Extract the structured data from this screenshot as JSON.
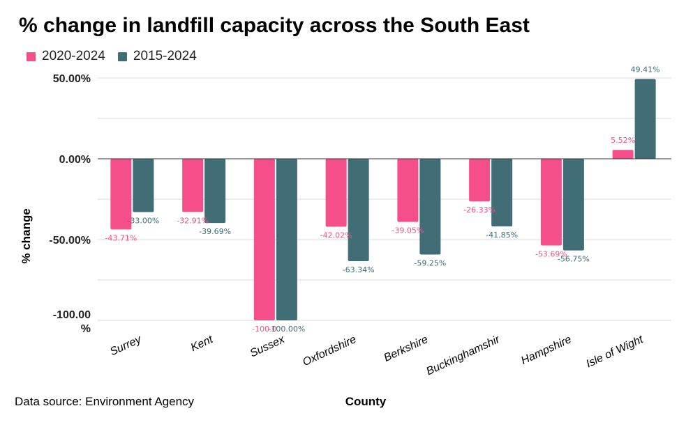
{
  "footer": {
    "source": "Data source: Environment Agency"
  },
  "colors": {
    "series1": "#f64e8b",
    "series2": "#416d77",
    "grid": "#d9d9d9",
    "baseline": "#333333"
  },
  "chart_data": {
    "type": "bar",
    "title": "% change in landfill capacity across the South East",
    "xlabel": "County",
    "ylabel": "% change",
    "ylim": [
      -100,
      50
    ],
    "yticks": [
      50,
      0,
      -50,
      -100
    ],
    "ytick_labels": [
      "50.00%",
      "0.00%",
      "-50.00%",
      "-100.00 %"
    ],
    "grid": true,
    "legend_position": "top-left",
    "categories": [
      "Surrey",
      "Kent",
      "Sussex",
      "Oxfordshire",
      "Berkshire",
      "Buckinghamshir",
      "Hampshire",
      "Isle of Wight"
    ],
    "series": [
      {
        "name": "2020-2024",
        "values": [
          -43.71,
          -32.91,
          -100.0,
          -42.02,
          -39.05,
          -26.33,
          -53.69,
          5.52
        ],
        "labels": [
          "-43.71%",
          "-32.91%",
          "-100.0",
          "-42.02%",
          "-39.05%",
          "-26.33%",
          "-53.69%",
          "5.52%"
        ]
      },
      {
        "name": "2015-2024",
        "values": [
          -33.0,
          -39.69,
          -100.0,
          -63.34,
          -59.25,
          -41.85,
          -56.75,
          49.41
        ],
        "labels": [
          "-33.00%",
          "-39.69%",
          "-100.00%",
          "-63.34%",
          "-59.25%",
          "-41.85%",
          "-56.75%",
          "49.41%"
        ]
      }
    ]
  }
}
